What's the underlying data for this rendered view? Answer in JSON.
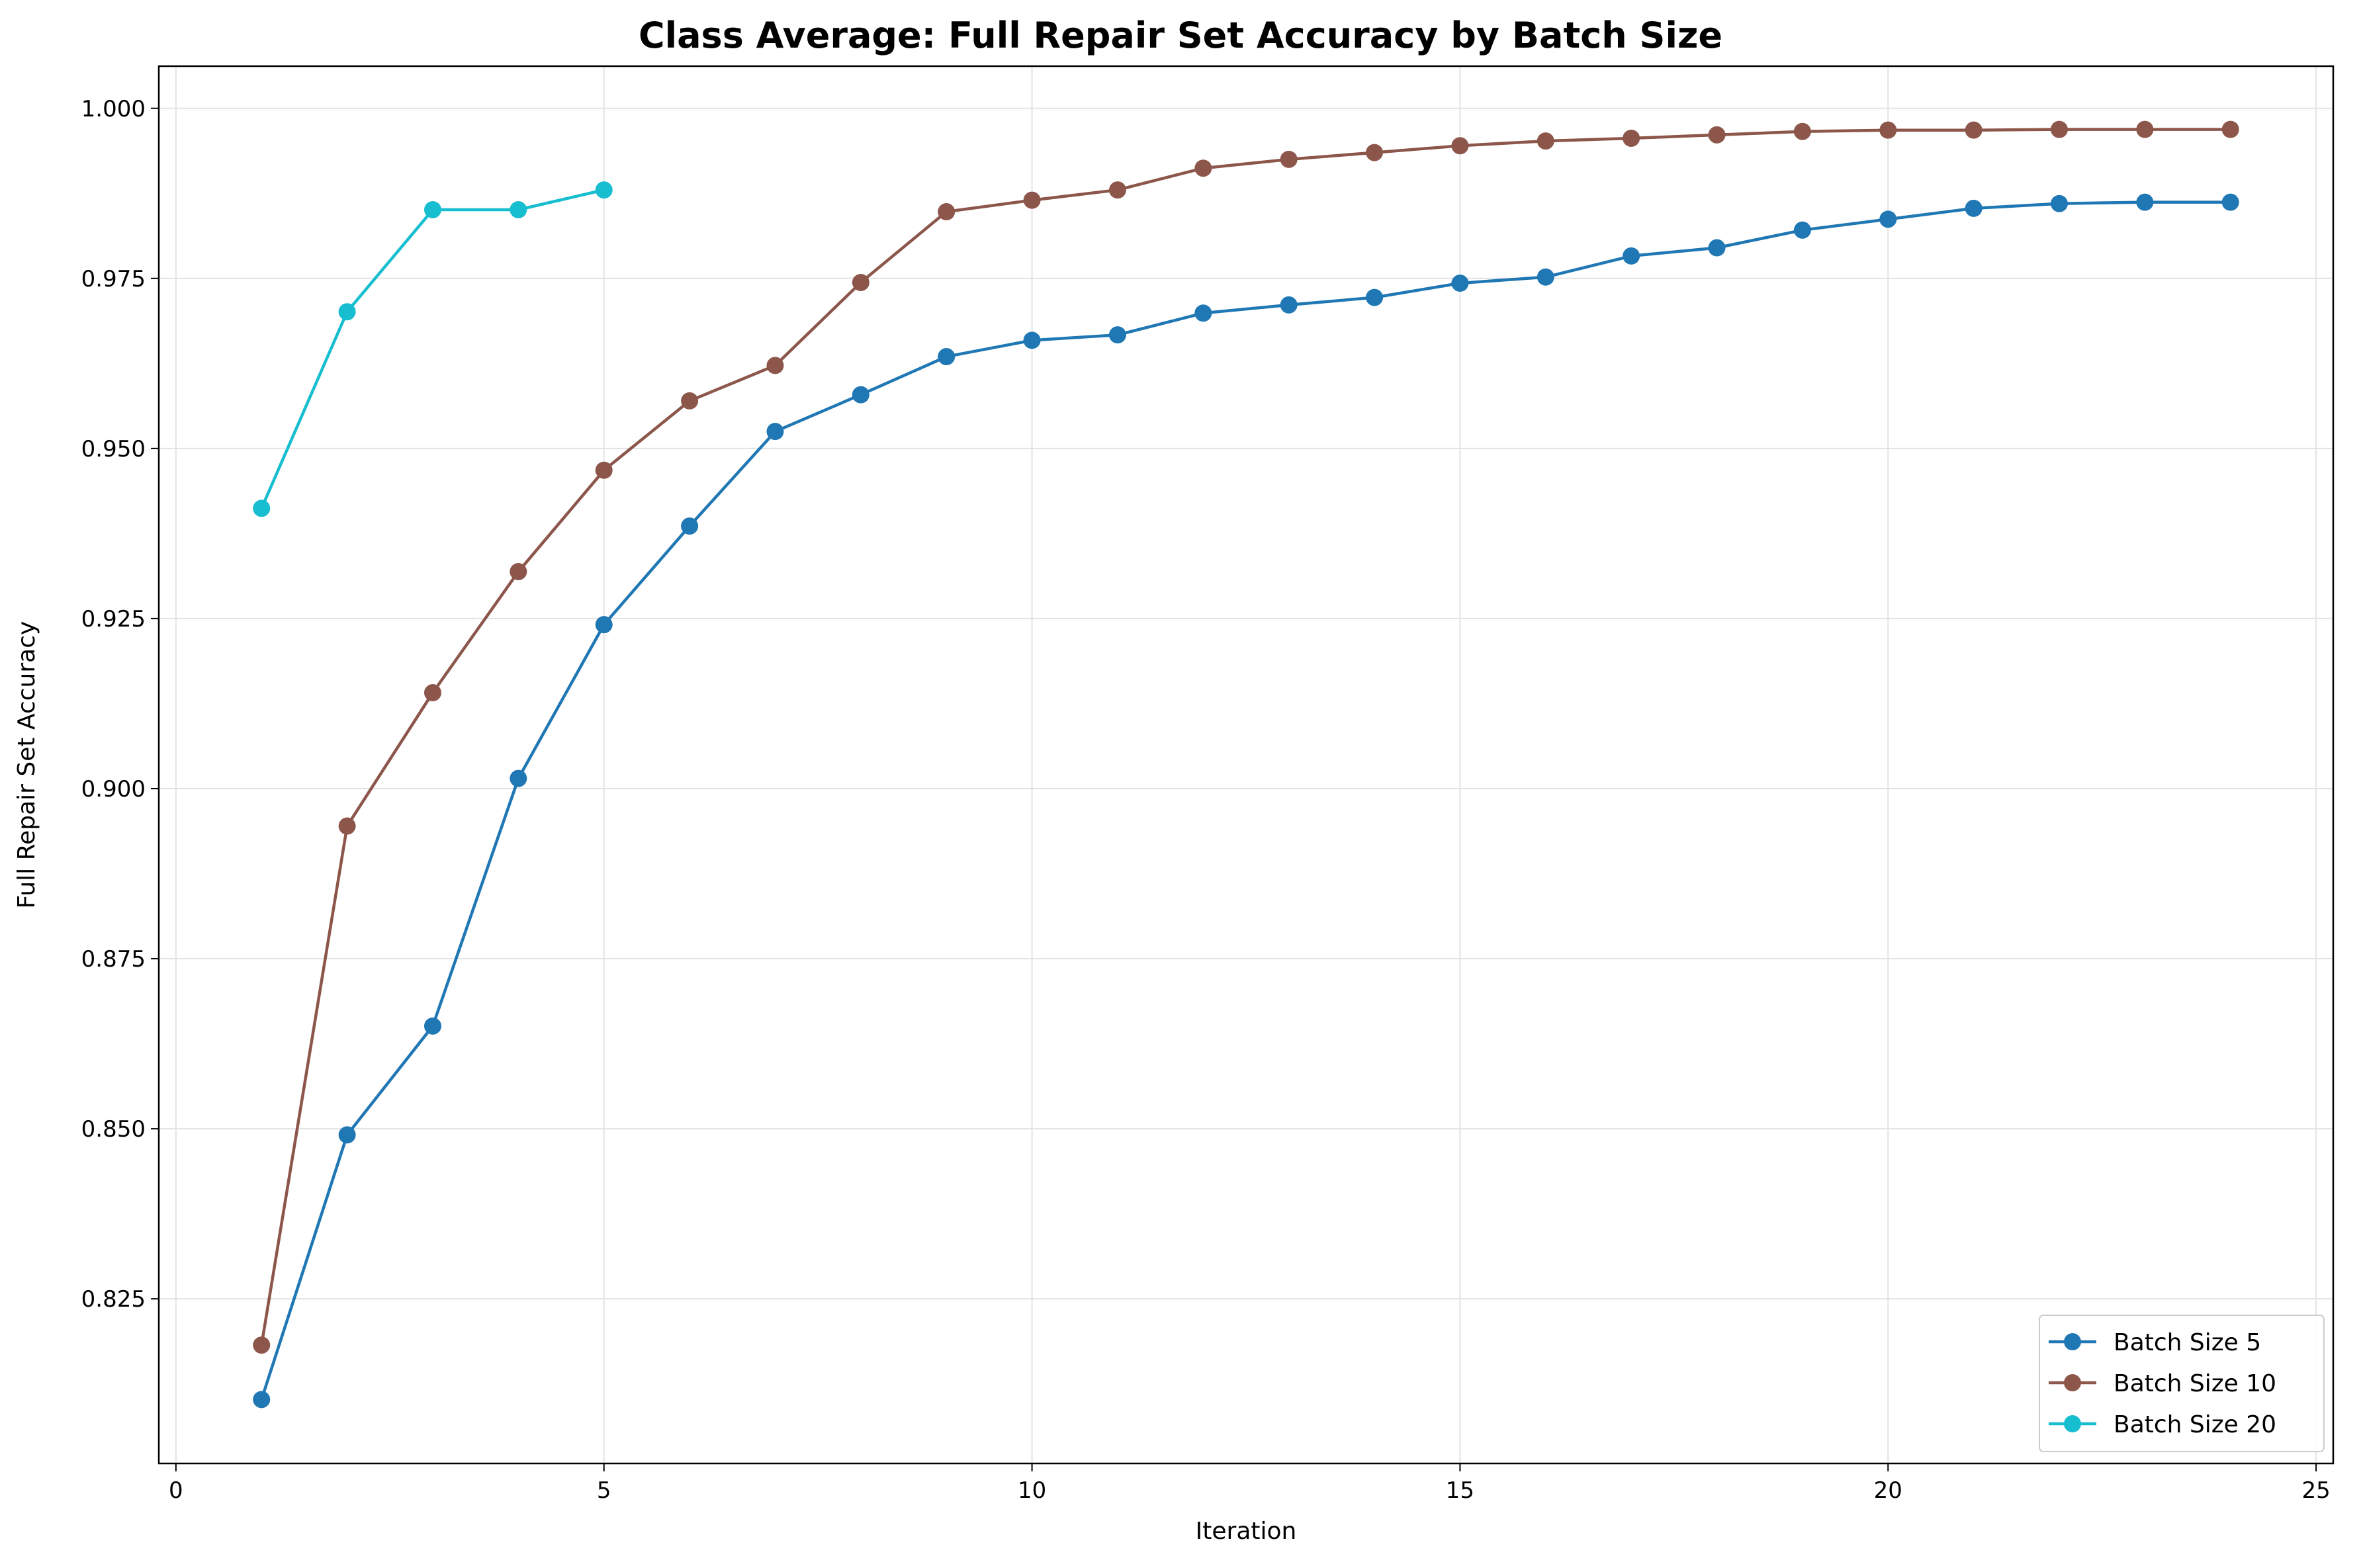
{
  "chart_data": {
    "type": "line",
    "title": "Class Average: Full Repair Set Accuracy by Batch Size",
    "xlabel": "Iteration",
    "ylabel": "Full Repair Set Accuracy",
    "xlim": [
      -0.2,
      25.2
    ],
    "ylim": [
      0.8008,
      1.0062
    ],
    "xticks": [
      0,
      5,
      10,
      15,
      20,
      25
    ],
    "yticks": [
      0.825,
      0.85,
      0.875,
      0.9,
      0.925,
      0.95,
      0.975,
      1.0
    ],
    "ytick_labels": [
      "0.825",
      "0.850",
      "0.875",
      "0.900",
      "0.925",
      "0.950",
      "0.975",
      "1.000"
    ],
    "grid": true,
    "legend_position": "lower-right",
    "series": [
      {
        "name": "Batch Size 5",
        "color": "#1f77b4",
        "marker": "circle",
        "x": [
          1,
          2,
          3,
          4,
          5,
          6,
          7,
          8,
          9,
          10,
          11,
          12,
          13,
          14,
          15,
          16,
          17,
          18,
          19,
          20,
          21,
          22,
          23,
          24
        ],
        "y": [
          0.8102,
          0.8491,
          0.8651,
          0.9015,
          0.9241,
          0.9386,
          0.9525,
          0.9579,
          0.9635,
          0.9659,
          0.9667,
          0.9699,
          0.9711,
          0.9722,
          0.9743,
          0.9752,
          0.9783,
          0.9795,
          0.9821,
          0.9837,
          0.9853,
          0.986,
          0.9862,
          0.9862
        ]
      },
      {
        "name": "Batch Size 10",
        "color": "#8c564b",
        "marker": "circle",
        "x": [
          1,
          2,
          3,
          4,
          5,
          6,
          7,
          8,
          9,
          10,
          11,
          12,
          13,
          14,
          15,
          16,
          17,
          18,
          19,
          20,
          21,
          22,
          23,
          24
        ],
        "y": [
          0.8182,
          0.8945,
          0.9141,
          0.9319,
          0.9468,
          0.957,
          0.9622,
          0.9744,
          0.9848,
          0.9865,
          0.988,
          0.9912,
          0.9925,
          0.9935,
          0.9945,
          0.9952,
          0.9956,
          0.9961,
          0.9966,
          0.9968,
          0.9968,
          0.9969,
          0.9969,
          0.9969
        ]
      },
      {
        "name": "Batch Size 20",
        "color": "#17becf",
        "marker": "circle",
        "x": [
          1,
          2,
          3,
          4,
          5
        ],
        "y": [
          0.9412,
          0.9701,
          0.9851,
          0.9851,
          0.988
        ]
      }
    ]
  }
}
